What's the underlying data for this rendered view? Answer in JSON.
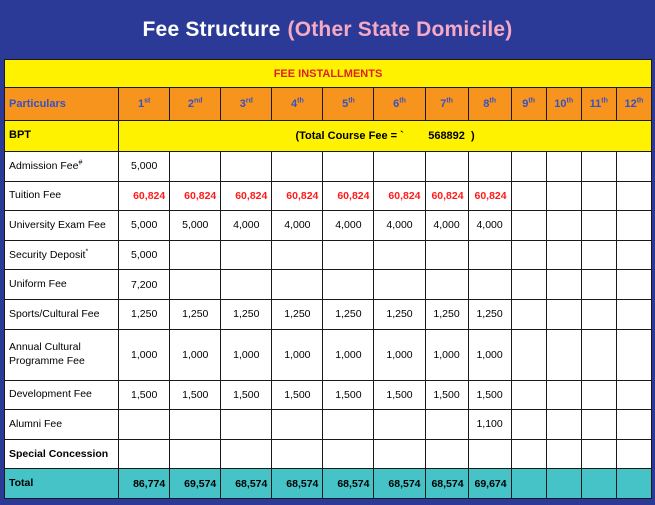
{
  "title": {
    "main": "Fee Structure",
    "highlight": "(Other State Domicile)"
  },
  "banner": "FEE INSTALLMENTS",
  "header": {
    "particulars": "Particulars",
    "installments": [
      {
        "n": "1",
        "s": "st"
      },
      {
        "n": "2",
        "s": "nd"
      },
      {
        "n": "3",
        "s": "rd"
      },
      {
        "n": "4",
        "s": "th"
      },
      {
        "n": "5",
        "s": "th"
      },
      {
        "n": "6",
        "s": "th"
      },
      {
        "n": "7",
        "s": "th"
      },
      {
        "n": "8",
        "s": "th"
      },
      {
        "n": "9",
        "s": "th"
      },
      {
        "n": "10",
        "s": "th"
      },
      {
        "n": "11",
        "s": "th"
      },
      {
        "n": "12",
        "s": "th"
      }
    ]
  },
  "course": {
    "name": "BPT",
    "total_fee_text": "(Total Course Fee = `        568892  )"
  },
  "colors": {
    "navy": "#2b3a96",
    "pink": "#f4a9c4",
    "yellow": "#fef200",
    "red_banner": "#dd1f26",
    "orange": "#f6941e",
    "header_blue": "#3b50c2",
    "tuition_red": "#ff1a1a",
    "teal": "#45c3c7",
    "border": "#1a1a1a"
  },
  "table": {
    "rows": [
      {
        "label": "Admission Fee",
        "sup": "#",
        "align": "center",
        "values": [
          "5,000",
          "",
          "",
          "",
          "",
          "",
          "",
          "",
          "",
          "",
          "",
          ""
        ]
      },
      {
        "label": "Tuition Fee",
        "style": "tuition",
        "align": "right",
        "values": [
          "60,824",
          "60,824",
          "60,824",
          "60,824",
          "60,824",
          "60,824",
          "60,824",
          "60,824",
          "",
          "",
          "",
          ""
        ]
      },
      {
        "label": "University Exam Fee",
        "align": "center",
        "values": [
          "5,000",
          "5,000",
          "4,000",
          "4,000",
          "4,000",
          "4,000",
          "4,000",
          "4,000",
          "",
          "",
          "",
          ""
        ]
      },
      {
        "label": "Security Deposit",
        "sup": "*",
        "align": "center",
        "values": [
          "5,000",
          "",
          "",
          "",
          "",
          "",
          "",
          "",
          "",
          "",
          "",
          ""
        ]
      },
      {
        "label": "Uniform Fee",
        "align": "center",
        "values": [
          "7,200",
          "",
          "",
          "",
          "",
          "",
          "",
          "",
          "",
          "",
          "",
          ""
        ]
      },
      {
        "label": "Sports/Cultural Fee",
        "align": "center",
        "values": [
          "1,250",
          "1,250",
          "1,250",
          "1,250",
          "1,250",
          "1,250",
          "1,250",
          "1,250",
          "",
          "",
          "",
          ""
        ]
      },
      {
        "label": "Annual Cultural Programme Fee",
        "align": "center",
        "values": [
          "1,000",
          "1,000",
          "1,000",
          "1,000",
          "1,000",
          "1,000",
          "1,000",
          "1,000",
          "",
          "",
          "",
          ""
        ]
      },
      {
        "label": "Development Fee",
        "align": "center",
        "values": [
          "1,500",
          "1,500",
          "1,500",
          "1,500",
          "1,500",
          "1,500",
          "1,500",
          "1,500",
          "",
          "",
          "",
          ""
        ]
      },
      {
        "label": "Alumni Fee",
        "align": "center",
        "values": [
          "",
          "",
          "",
          "",
          "",
          "",
          "",
          "1,100",
          "",
          "",
          "",
          ""
        ]
      },
      {
        "label": "Special Concession",
        "label_bold": true,
        "align": "center",
        "values": [
          "",
          "",
          "",
          "",
          "",
          "",
          "",
          "",
          "",
          "",
          "",
          ""
        ]
      },
      {
        "label": "Total",
        "style": "total",
        "align": "right",
        "values": [
          "86,774",
          "69,574",
          "68,574",
          "68,574",
          "68,574",
          "68,574",
          "68,574",
          "69,674",
          "",
          "",
          "",
          ""
        ]
      }
    ]
  }
}
